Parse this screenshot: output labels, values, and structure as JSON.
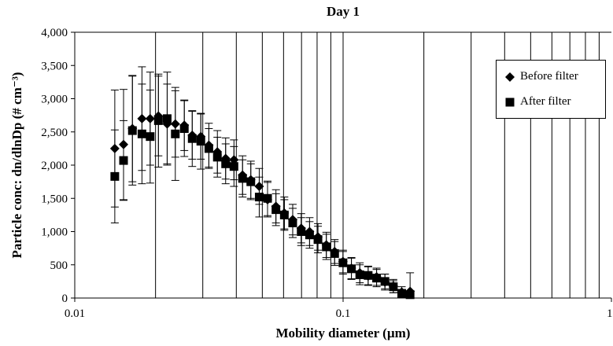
{
  "chart_data": {
    "type": "scatter",
    "title": "Day 1",
    "xlabel": "Mobility diameter (µm)",
    "ylabel": "Particle conc: dn/dlnDp (# cm⁻³)",
    "x_scale": "log",
    "xlim": [
      0.01,
      1
    ],
    "ylim": [
      0,
      4000
    ],
    "x_ticks": [
      "0.01",
      "0.1",
      "1"
    ],
    "y_ticks": [
      "0",
      "500",
      "1,000",
      "1,500",
      "2,000",
      "2,500",
      "3,000",
      "3,500",
      "4,000"
    ],
    "grid": "vertical log gridlines",
    "legend_position": "top-right",
    "series": [
      {
        "name": "Before filter",
        "marker": "diamond",
        "points": [
          {
            "x": 0.0141,
            "y": 2250,
            "err": 880
          },
          {
            "x": 0.0152,
            "y": 2310,
            "err": 830
          },
          {
            "x": 0.0164,
            "y": 2550,
            "err": 800
          },
          {
            "x": 0.0178,
            "y": 2700,
            "err": 780
          },
          {
            "x": 0.0191,
            "y": 2700,
            "err": 700
          },
          {
            "x": 0.0205,
            "y": 2740,
            "err": 600
          },
          {
            "x": 0.0221,
            "y": 2620,
            "err": 600
          },
          {
            "x": 0.0237,
            "y": 2620,
            "err": 500
          },
          {
            "x": 0.0256,
            "y": 2600,
            "err": 380
          },
          {
            "x": 0.0274,
            "y": 2450,
            "err": 360
          },
          {
            "x": 0.0295,
            "y": 2430,
            "err": 340
          },
          {
            "x": 0.0316,
            "y": 2300,
            "err": 330
          },
          {
            "x": 0.034,
            "y": 2200,
            "err": 320
          },
          {
            "x": 0.0365,
            "y": 2100,
            "err": 310
          },
          {
            "x": 0.0392,
            "y": 2080,
            "err": 300
          },
          {
            "x": 0.0422,
            "y": 1850,
            "err": 290
          },
          {
            "x": 0.0453,
            "y": 1780,
            "err": 280
          },
          {
            "x": 0.0487,
            "y": 1680,
            "err": 270
          },
          {
            "x": 0.0523,
            "y": 1480,
            "err": 260
          },
          {
            "x": 0.0562,
            "y": 1380,
            "err": 250
          },
          {
            "x": 0.0604,
            "y": 1280,
            "err": 240
          },
          {
            "x": 0.0649,
            "y": 1180,
            "err": 230
          },
          {
            "x": 0.0698,
            "y": 1050,
            "err": 220
          },
          {
            "x": 0.075,
            "y": 1000,
            "err": 210
          },
          {
            "x": 0.0806,
            "y": 920,
            "err": 200
          },
          {
            "x": 0.0866,
            "y": 800,
            "err": 190
          },
          {
            "x": 0.093,
            "y": 700,
            "err": 180
          },
          {
            "x": 0.0999,
            "y": 550,
            "err": 170
          },
          {
            "x": 0.1074,
            "y": 450,
            "err": 160
          },
          {
            "x": 0.1154,
            "y": 380,
            "err": 150
          },
          {
            "x": 0.124,
            "y": 330,
            "err": 140
          },
          {
            "x": 0.1333,
            "y": 320,
            "err": 130
          },
          {
            "x": 0.1432,
            "y": 240,
            "err": 120
          },
          {
            "x": 0.1539,
            "y": 180,
            "err": 100
          },
          {
            "x": 0.1654,
            "y": 90,
            "err": 80
          },
          {
            "x": 0.1777,
            "y": 100,
            "err": 280
          }
        ]
      },
      {
        "name": "After filter",
        "marker": "square",
        "points": [
          {
            "x": 0.0141,
            "y": 1830,
            "err": 700
          },
          {
            "x": 0.0152,
            "y": 2070,
            "err": 600
          },
          {
            "x": 0.0164,
            "y": 2520,
            "err": 820
          },
          {
            "x": 0.0178,
            "y": 2470,
            "err": 750
          },
          {
            "x": 0.0191,
            "y": 2430,
            "err": 700
          },
          {
            "x": 0.0205,
            "y": 2670,
            "err": 700
          },
          {
            "x": 0.0221,
            "y": 2700,
            "err": 700
          },
          {
            "x": 0.0237,
            "y": 2470,
            "err": 700
          },
          {
            "x": 0.0256,
            "y": 2550,
            "err": 420
          },
          {
            "x": 0.0274,
            "y": 2400,
            "err": 420
          },
          {
            "x": 0.0295,
            "y": 2360,
            "err": 420
          },
          {
            "x": 0.0316,
            "y": 2250,
            "err": 300
          },
          {
            "x": 0.034,
            "y": 2120,
            "err": 300
          },
          {
            "x": 0.0365,
            "y": 2020,
            "err": 300
          },
          {
            "x": 0.0392,
            "y": 1980,
            "err": 300
          },
          {
            "x": 0.0422,
            "y": 1800,
            "err": 280
          },
          {
            "x": 0.0453,
            "y": 1750,
            "err": 270
          },
          {
            "x": 0.0487,
            "y": 1520,
            "err": 300
          },
          {
            "x": 0.0523,
            "y": 1500,
            "err": 260
          },
          {
            "x": 0.0562,
            "y": 1330,
            "err": 240
          },
          {
            "x": 0.0604,
            "y": 1250,
            "err": 230
          },
          {
            "x": 0.0649,
            "y": 1130,
            "err": 220
          },
          {
            "x": 0.0698,
            "y": 1000,
            "err": 210
          },
          {
            "x": 0.075,
            "y": 950,
            "err": 200
          },
          {
            "x": 0.0806,
            "y": 880,
            "err": 200
          },
          {
            "x": 0.0866,
            "y": 770,
            "err": 190
          },
          {
            "x": 0.093,
            "y": 670,
            "err": 180
          },
          {
            "x": 0.0999,
            "y": 530,
            "err": 170
          },
          {
            "x": 0.1074,
            "y": 440,
            "err": 160
          },
          {
            "x": 0.1154,
            "y": 350,
            "err": 150
          },
          {
            "x": 0.124,
            "y": 340,
            "err": 140
          },
          {
            "x": 0.1333,
            "y": 300,
            "err": 130
          },
          {
            "x": 0.1432,
            "y": 250,
            "err": 110
          },
          {
            "x": 0.1539,
            "y": 170,
            "err": 90
          },
          {
            "x": 0.1654,
            "y": 70,
            "err": 60
          },
          {
            "x": 0.1777,
            "y": 50,
            "err": 60
          }
        ]
      }
    ]
  }
}
